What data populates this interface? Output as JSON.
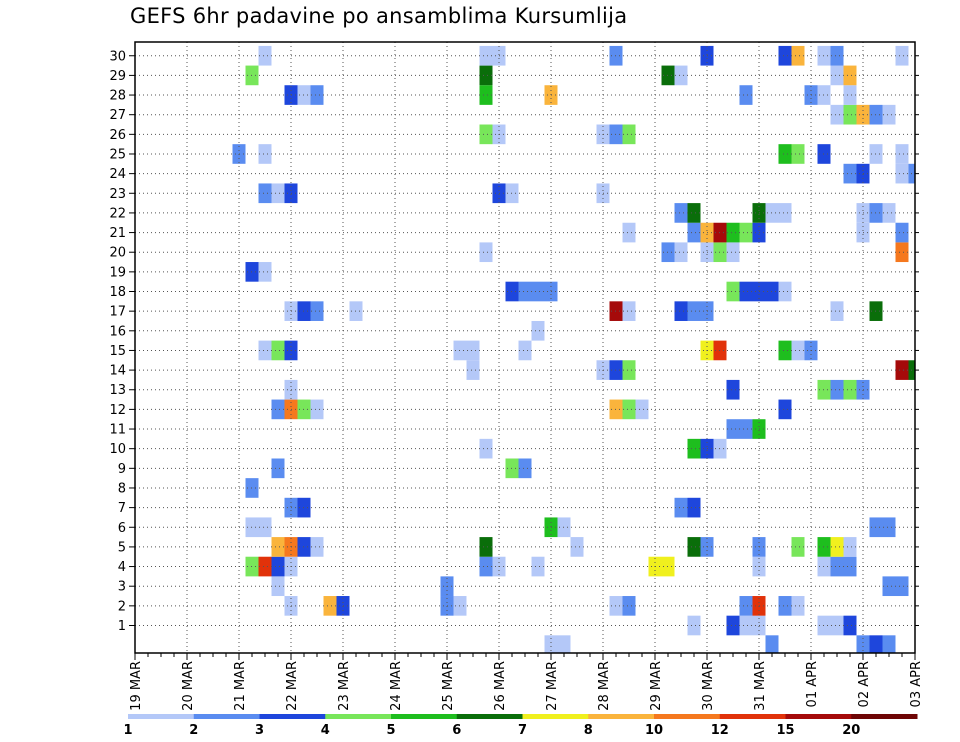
{
  "chart_data": {
    "type": "heatmap",
    "title": "GEFS 6hr padavine po ansamblima Kursumlija",
    "xlabel": "",
    "ylabel": "",
    "members": [
      1,
      2,
      3,
      4,
      5,
      6,
      7,
      8,
      9,
      10,
      11,
      12,
      13,
      14,
      15,
      16,
      17,
      18,
      19,
      20,
      21,
      22,
      23,
      24,
      25,
      26,
      27,
      28,
      29,
      30
    ],
    "member_labels": [
      "1",
      "2",
      "3",
      "4",
      "5",
      "6",
      "7",
      "8",
      "9",
      "10",
      "11",
      "12",
      "13",
      "14",
      "15",
      "16",
      "17",
      "18",
      "19",
      "20",
      "21",
      "22",
      "23",
      "24",
      "25",
      "26",
      "27",
      "28",
      "29",
      "30"
    ],
    "x_tick_labels": [
      "19 MAR",
      "20 MAR",
      "21 MAR",
      "22 MAR",
      "23 MAR",
      "24 MAR",
      "25 MAR",
      "26 MAR",
      "27 MAR",
      "28 MAR",
      "29 MAR",
      "30 MAR",
      "31 MAR",
      "01 APR",
      "02 APR",
      "03 APR"
    ],
    "x_range_steps": [
      0,
      60
    ],
    "step_hours": 6,
    "grid": true,
    "legend_position": "bottom",
    "legend": {
      "labels": [
        "1",
        "2",
        "3",
        "4",
        "5",
        "6",
        "7",
        "8",
        "10",
        "12",
        "15",
        "20"
      ],
      "colors": [
        "#b4c8f8",
        "#5a8cf0",
        "#1e46dc",
        "#78e65a",
        "#1ebe1e",
        "#0a6e0a",
        "#f0f01e",
        "#fab43c",
        "#f5781e",
        "#e1320a",
        "#a50a0a",
        "#6e0505"
      ]
    },
    "cells": [
      [
        1,
        43,
        1
      ],
      [
        1,
        46,
        3
      ],
      [
        1,
        47,
        1
      ],
      [
        1,
        48,
        1
      ],
      [
        1,
        53,
        1
      ],
      [
        1,
        54,
        1
      ],
      [
        1,
        55,
        3
      ],
      [
        2,
        12,
        1
      ],
      [
        2,
        15,
        8
      ],
      [
        2,
        16,
        3
      ],
      [
        2,
        24,
        2
      ],
      [
        2,
        25,
        1
      ],
      [
        2,
        37,
        1
      ],
      [
        2,
        38,
        2
      ],
      [
        2,
        47,
        2
      ],
      [
        2,
        48,
        10
      ],
      [
        2,
        50,
        2
      ],
      [
        2,
        51,
        1
      ],
      [
        3,
        11,
        1
      ],
      [
        3,
        24,
        2
      ],
      [
        3,
        58,
        2
      ],
      [
        3,
        59,
        2
      ],
      [
        4,
        9,
        4
      ],
      [
        4,
        10,
        10
      ],
      [
        4,
        11,
        3
      ],
      [
        4,
        12,
        1
      ],
      [
        4,
        27,
        2
      ],
      [
        4,
        28,
        1
      ],
      [
        4,
        31,
        1
      ],
      [
        4,
        40,
        7
      ],
      [
        4,
        41,
        7
      ],
      [
        4,
        48,
        1
      ],
      [
        4,
        53,
        1
      ],
      [
        4,
        54,
        2
      ],
      [
        4,
        55,
        2
      ],
      [
        5,
        11,
        8
      ],
      [
        5,
        12,
        9
      ],
      [
        5,
        13,
        3
      ],
      [
        5,
        14,
        1
      ],
      [
        5,
        27,
        6
      ],
      [
        5,
        34,
        1
      ],
      [
        5,
        43,
        6
      ],
      [
        5,
        44,
        2
      ],
      [
        5,
        48,
        2
      ],
      [
        5,
        51,
        4
      ],
      [
        5,
        53,
        5
      ],
      [
        5,
        54,
        7
      ],
      [
        5,
        55,
        1
      ],
      [
        6,
        9,
        1
      ],
      [
        6,
        10,
        1
      ],
      [
        6,
        32,
        5
      ],
      [
        6,
        33,
        1
      ],
      [
        6,
        57,
        2
      ],
      [
        6,
        58,
        2
      ],
      [
        7,
        12,
        2
      ],
      [
        7,
        13,
        3
      ],
      [
        7,
        42,
        2
      ],
      [
        7,
        43,
        3
      ],
      [
        8,
        9,
        2
      ],
      [
        9,
        11,
        2
      ],
      [
        9,
        29,
        4
      ],
      [
        9,
        30,
        2
      ],
      [
        10,
        27,
        1
      ],
      [
        10,
        43,
        5
      ],
      [
        10,
        44,
        3
      ],
      [
        10,
        45,
        1
      ],
      [
        11,
        46,
        2
      ],
      [
        11,
        47,
        2
      ],
      [
        11,
        48,
        5
      ],
      [
        12,
        11,
        2
      ],
      [
        12,
        12,
        9
      ],
      [
        12,
        13,
        4
      ],
      [
        12,
        14,
        1
      ],
      [
        12,
        37,
        8
      ],
      [
        12,
        38,
        4
      ],
      [
        12,
        39,
        1
      ],
      [
        12,
        50,
        3
      ],
      [
        13,
        12,
        1
      ],
      [
        13,
        46,
        3
      ],
      [
        13,
        53,
        4
      ],
      [
        13,
        54,
        2
      ],
      [
        13,
        55,
        4
      ],
      [
        13,
        56,
        2
      ],
      [
        14,
        26,
        1
      ],
      [
        14,
        36,
        1
      ],
      [
        14,
        37,
        3
      ],
      [
        14,
        38,
        4
      ],
      [
        14,
        59,
        11
      ],
      [
        14,
        60,
        6
      ],
      [
        15,
        10,
        1
      ],
      [
        15,
        11,
        4
      ],
      [
        15,
        12,
        3
      ],
      [
        15,
        25,
        1
      ],
      [
        15,
        26,
        1
      ],
      [
        15,
        30,
        1
      ],
      [
        15,
        44,
        7
      ],
      [
        15,
        45,
        10
      ],
      [
        15,
        50,
        5
      ],
      [
        15,
        51,
        1
      ],
      [
        15,
        52,
        2
      ],
      [
        16,
        31,
        1
      ],
      [
        17,
        12,
        1
      ],
      [
        17,
        13,
        3
      ],
      [
        17,
        14,
        2
      ],
      [
        17,
        17,
        1
      ],
      [
        17,
        37,
        11
      ],
      [
        17,
        38,
        1
      ],
      [
        17,
        42,
        3
      ],
      [
        17,
        43,
        2
      ],
      [
        17,
        44,
        2
      ],
      [
        17,
        54,
        1
      ],
      [
        17,
        57,
        6
      ],
      [
        18,
        29,
        3
      ],
      [
        18,
        30,
        2
      ],
      [
        18,
        31,
        2
      ],
      [
        18,
        32,
        2
      ],
      [
        18,
        46,
        4
      ],
      [
        18,
        47,
        3
      ],
      [
        18,
        48,
        3
      ],
      [
        18,
        49,
        3
      ],
      [
        18,
        50,
        1
      ],
      [
        19,
        9,
        3
      ],
      [
        19,
        10,
        1
      ],
      [
        20,
        27,
        1
      ],
      [
        20,
        41,
        2
      ],
      [
        20,
        42,
        1
      ],
      [
        20,
        44,
        1
      ],
      [
        20,
        45,
        4
      ],
      [
        20,
        46,
        1
      ],
      [
        20,
        59,
        9
      ],
      [
        21,
        38,
        1
      ],
      [
        21,
        43,
        2
      ],
      [
        21,
        44,
        8
      ],
      [
        21,
        45,
        11
      ],
      [
        21,
        46,
        5
      ],
      [
        21,
        47,
        4
      ],
      [
        21,
        48,
        3
      ],
      [
        21,
        56,
        1
      ],
      [
        21,
        59,
        2
      ],
      [
        22,
        42,
        2
      ],
      [
        22,
        43,
        6
      ],
      [
        22,
        48,
        6
      ],
      [
        22,
        49,
        1
      ],
      [
        22,
        50,
        1
      ],
      [
        22,
        56,
        1
      ],
      [
        22,
        57,
        2
      ],
      [
        22,
        58,
        1
      ],
      [
        23,
        10,
        2
      ],
      [
        23,
        11,
        1
      ],
      [
        23,
        12,
        3
      ],
      [
        23,
        28,
        3
      ],
      [
        23,
        29,
        1
      ],
      [
        23,
        36,
        1
      ],
      [
        24,
        55,
        2
      ],
      [
        24,
        56,
        3
      ],
      [
        24,
        59,
        1
      ],
      [
        24,
        60,
        2
      ],
      [
        25,
        8,
        2
      ],
      [
        25,
        10,
        1
      ],
      [
        25,
        50,
        5
      ],
      [
        25,
        51,
        4
      ],
      [
        25,
        53,
        3
      ],
      [
        25,
        57,
        1
      ],
      [
        25,
        59,
        1
      ],
      [
        26,
        27,
        4
      ],
      [
        26,
        28,
        1
      ],
      [
        26,
        36,
        1
      ],
      [
        26,
        37,
        2
      ],
      [
        26,
        38,
        4
      ],
      [
        27,
        54,
        1
      ],
      [
        27,
        55,
        4
      ],
      [
        27,
        56,
        8
      ],
      [
        27,
        57,
        2
      ],
      [
        27,
        58,
        1
      ],
      [
        28,
        12,
        3
      ],
      [
        28,
        13,
        1
      ],
      [
        28,
        14,
        2
      ],
      [
        28,
        27,
        5
      ],
      [
        28,
        32,
        8
      ],
      [
        28,
        47,
        2
      ],
      [
        28,
        52,
        2
      ],
      [
        28,
        53,
        1
      ],
      [
        28,
        55,
        1
      ],
      [
        29,
        9,
        4
      ],
      [
        29,
        27,
        6
      ],
      [
        29,
        41,
        6
      ],
      [
        29,
        42,
        1
      ],
      [
        29,
        54,
        1
      ],
      [
        29,
        55,
        8
      ],
      [
        30,
        10,
        1
      ],
      [
        30,
        27,
        1
      ],
      [
        30,
        28,
        1
      ],
      [
        30,
        37,
        2
      ],
      [
        30,
        44,
        3
      ],
      [
        30,
        50,
        3
      ],
      [
        30,
        51,
        8
      ],
      [
        30,
        53,
        1
      ],
      [
        30,
        54,
        2
      ],
      [
        30,
        59,
        1
      ],
      [
        0,
        32,
        1
      ],
      [
        0,
        33,
        1
      ],
      [
        0,
        49,
        2
      ],
      [
        0,
        56,
        2
      ],
      [
        0,
        57,
        3
      ],
      [
        0,
        58,
        2
      ]
    ]
  }
}
